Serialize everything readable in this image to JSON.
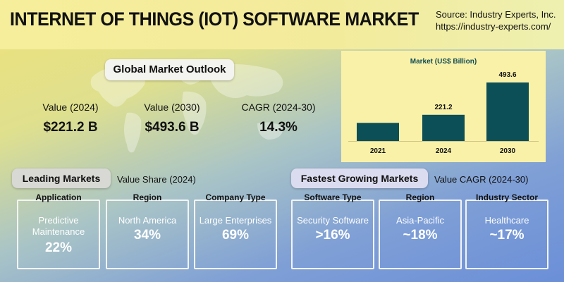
{
  "header": {
    "title": "INTERNET OF THINGS (IOT) SOFTWARE MARKET",
    "source_line1": "Source: Industry Experts, Inc.",
    "source_line2": "https://industry-experts.com/"
  },
  "outlook": {
    "title": "Global Market Outlook",
    "metrics": [
      {
        "label": "Value (2024)",
        "value": "$221.2 B"
      },
      {
        "label": "Value (2030)",
        "value": "$493.6 B"
      },
      {
        "label": "CAGR (2024-30)",
        "value": "14.3%"
      }
    ]
  },
  "chart_data": {
    "type": "bar",
    "title": "Market (US$ Billion)",
    "categories": [
      "2021",
      "2024",
      "2030"
    ],
    "values": [
      null,
      221.2,
      493.6
    ],
    "value_labels": [
      "",
      "221.2",
      "493.6"
    ],
    "bar_color": "#0d4f57"
  },
  "leading": {
    "title": "Leading Markets",
    "subtitle": "Value Share (2024)",
    "cards": [
      {
        "title": "Application",
        "category": "Predictive Maintenance",
        "value": "22%"
      },
      {
        "title": "Region",
        "category": "North America",
        "value": "34%"
      },
      {
        "title": "Company Type",
        "category": "Large Enterprises",
        "value": "69%"
      }
    ]
  },
  "fastest": {
    "title": "Fastest Growing Markets",
    "subtitle": "Value CAGR (2024-30)",
    "cards": [
      {
        "title": "Software Type",
        "category": "Security Software",
        "value": ">16%"
      },
      {
        "title": "Region",
        "category": "Asia-Pacific",
        "value": "~18%"
      },
      {
        "title": "Industry Sector",
        "category": "Healthcare",
        "value": "~17%"
      }
    ]
  }
}
